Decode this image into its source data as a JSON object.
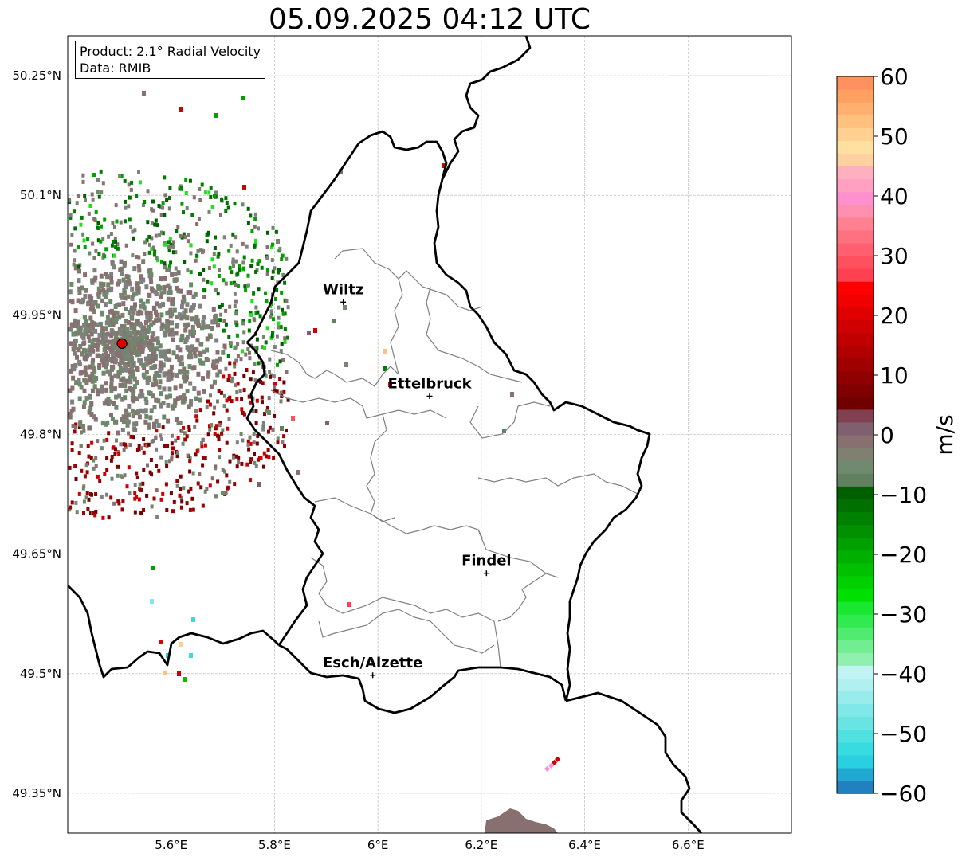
{
  "title": "05.09.2025 04:12 UTC",
  "info": {
    "product": "Product: 2.1° Radial Velocity",
    "data": "Data: RMIB"
  },
  "map": {
    "lon_range": [
      5.4,
      6.8
    ],
    "lat_range": [
      49.3,
      50.3
    ],
    "lon_ticks": [
      {
        "value": 5.6,
        "label": "5.6°E"
      },
      {
        "value": 5.8,
        "label": "5.8°E"
      },
      {
        "value": 6.0,
        "label": "6°E"
      },
      {
        "value": 6.2,
        "label": "6.2°E"
      },
      {
        "value": 6.4,
        "label": "6.4°E"
      },
      {
        "value": 6.6,
        "label": "6.6°E"
      }
    ],
    "lat_ticks": [
      {
        "value": 49.35,
        "label": "49.35°N"
      },
      {
        "value": 49.5,
        "label": "49.5°N"
      },
      {
        "value": 49.65,
        "label": "49.65°N"
      },
      {
        "value": 49.8,
        "label": "49.8°N"
      },
      {
        "value": 49.95,
        "label": "49.95°N"
      },
      {
        "value": 50.1,
        "label": "50.1°N"
      },
      {
        "value": 50.25,
        "label": "50.25°N"
      }
    ],
    "radar_site": {
      "lon": 5.505,
      "lat": 49.914
    },
    "cities": [
      {
        "name": "Wiltz",
        "lon": 5.933,
        "lat": 49.966
      },
      {
        "name": "Ettelbruck",
        "lon": 6.1,
        "lat": 49.848
      },
      {
        "name": "Findel",
        "lon": 6.21,
        "lat": 49.626
      },
      {
        "name": "Esch/Alzette",
        "lon": 5.99,
        "lat": 49.498
      }
    ],
    "grid": true
  },
  "colorbar": {
    "label": "m/s",
    "min": -60,
    "max": 60,
    "ticks": [
      {
        "value": 60,
        "label": "60"
      },
      {
        "value": 50,
        "label": "50"
      },
      {
        "value": 40,
        "label": "40"
      },
      {
        "value": 30,
        "label": "30"
      },
      {
        "value": 20,
        "label": "20"
      },
      {
        "value": 10,
        "label": "10"
      },
      {
        "value": 0,
        "label": "0"
      },
      {
        "value": -10,
        "label": "−10"
      },
      {
        "value": -20,
        "label": "−20"
      },
      {
        "value": -30,
        "label": "−30"
      },
      {
        "value": -40,
        "label": "−40"
      },
      {
        "value": -50,
        "label": "−50"
      },
      {
        "value": -60,
        "label": "−60"
      }
    ],
    "colors": [
      "#2080c0",
      "#20a8d0",
      "#28d0e0",
      "#38dce0",
      "#50e0e0",
      "#68e4e4",
      "#80e8e8",
      "#98ecec",
      "#b0f0f0",
      "#c0f4f4",
      "#90f0b0",
      "#70ee90",
      "#50ec70",
      "#30ea50",
      "#18e830",
      "#00e000",
      "#00d000",
      "#00c000",
      "#00b000",
      "#00a000",
      "#009000",
      "#008000",
      "#007000",
      "#006000",
      "#608060",
      "#708a70",
      "#808070",
      "#887070",
      "#806070",
      "#804050",
      "#700000",
      "#800000",
      "#900000",
      "#a00000",
      "#b00000",
      "#c00000",
      "#d00000",
      "#e00000",
      "#f00000",
      "#ff0000",
      "#ff4050",
      "#ff5060",
      "#ff6070",
      "#ff7080",
      "#ff8090",
      "#ff90b0",
      "#ff90d0",
      "#ffa0c0",
      "#ffb0c0",
      "#ffd0a0",
      "#ffe0a0",
      "#ffd090",
      "#ffc080",
      "#ffb070",
      "#ffa060",
      "#ff9060"
    ]
  }
}
